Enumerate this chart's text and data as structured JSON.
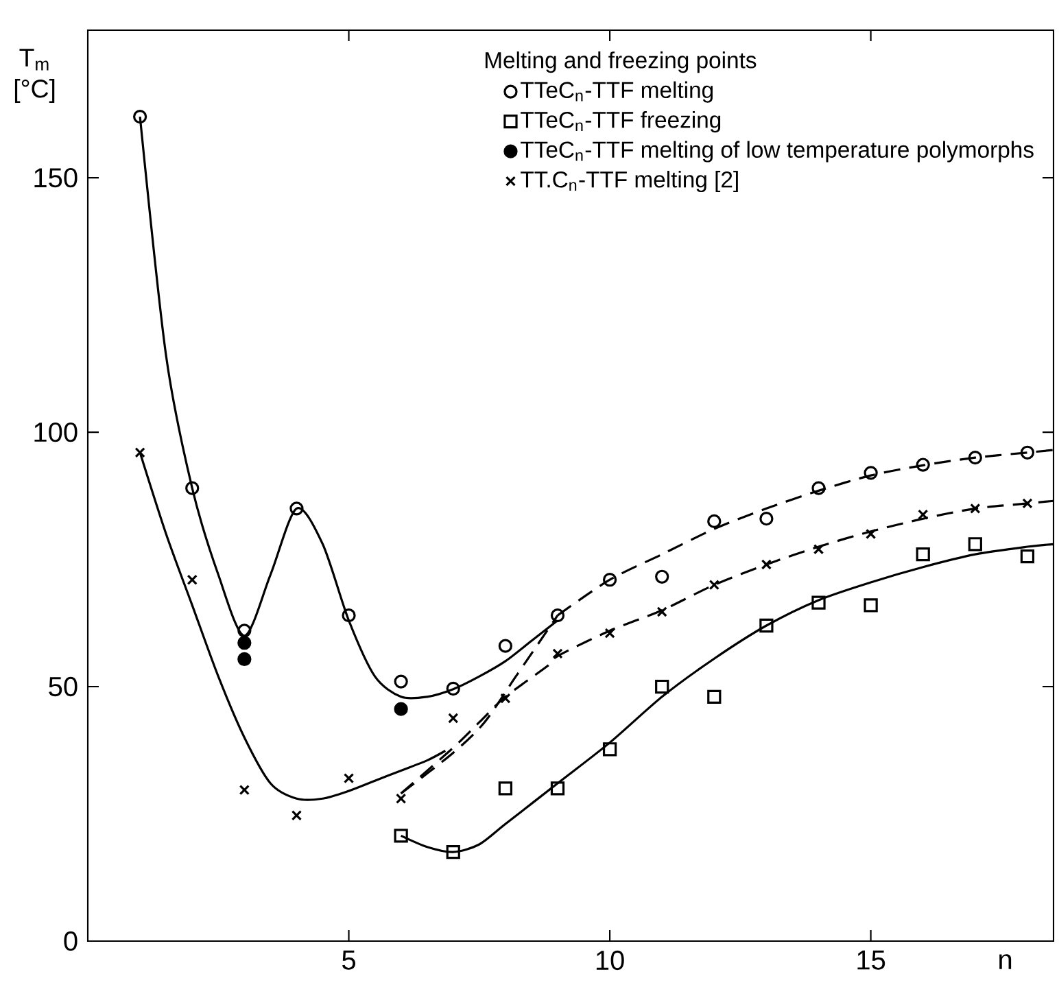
{
  "chart_data": {
    "type": "scatter",
    "ylabel": "T$_{m}$ [°C]",
    "xlabel": "n",
    "legend_title": "Melting and freezing points",
    "legend": "top right",
    "grid": false,
    "xlim": [
      0,
      18.5
    ],
    "ylim": [
      0,
      179
    ],
    "xticks": [
      5,
      10,
      15
    ],
    "yticks": [
      0,
      50,
      100,
      150
    ],
    "series": [
      {
        "name": "TTeC$_{n}$-TTF melting",
        "marker": "circle",
        "color": "#000000",
        "x": [
          1,
          2,
          3,
          4,
          5,
          6,
          7,
          8,
          9,
          10,
          11,
          12,
          13,
          14,
          15,
          16,
          17,
          18
        ],
        "values": [
          162,
          89,
          61,
          85,
          64,
          51,
          49.6,
          58,
          64,
          71,
          71.6,
          82.5,
          83,
          89,
          92,
          93.6,
          95,
          96
        ]
      },
      {
        "name": "TTeC$_{n}$-TTF freezing",
        "marker": "square",
        "color": "#000000",
        "x": [
          6,
          7,
          8,
          9,
          10,
          11,
          12,
          13,
          14,
          15,
          16,
          17,
          18
        ],
        "values": [
          20.7,
          17.5,
          30,
          30,
          37.7,
          50,
          48,
          62,
          66.5,
          66,
          76,
          78,
          75.6
        ]
      },
      {
        "name": "TTeC$_{n}$-TTF melting of low temperature polymorphs",
        "marker": "halfcircle",
        "color": "#000000",
        "x": [
          3,
          3,
          6
        ],
        "values": [
          58.6,
          55.4,
          45.6
        ]
      },
      {
        "name": "TT.C$_{n}$-TTF melting [2]",
        "marker": "cross",
        "color": "#000000",
        "x": [
          1,
          2,
          3,
          4,
          5,
          6,
          7,
          8,
          9,
          10,
          11,
          12,
          13,
          14,
          15,
          16,
          17,
          18
        ],
        "values": [
          96,
          71,
          29.7,
          24.7,
          32,
          28,
          43.8,
          47.7,
          56.5,
          60.5,
          64.7,
          70,
          74,
          77,
          80,
          83.8,
          85,
          86
        ]
      },
      {
        "type": "line",
        "marker": "none",
        "line_style": "solid",
        "color": "#000000",
        "x": [
          1,
          1.5,
          2,
          2.5,
          3,
          3.5,
          4,
          4.5,
          5,
          5.5,
          6,
          6.5,
          7,
          7.5,
          8,
          8.5,
          9
        ],
        "values": [
          162,
          115,
          89,
          72,
          60,
          72,
          85,
          78,
          63,
          52,
          48,
          48,
          49.5,
          52,
          55,
          59,
          63
        ]
      },
      {
        "type": "line",
        "marker": "none",
        "line_style": "dashed",
        "color": "#000000",
        "x": [
          9,
          10,
          11,
          12,
          13,
          14,
          15,
          16,
          17,
          18,
          18.5
        ],
        "values": [
          64,
          71,
          76,
          81,
          85,
          88.5,
          91.5,
          93.5,
          95,
          96,
          96.5
        ]
      },
      {
        "type": "line",
        "marker": "none",
        "line_style": "dashed",
        "color": "#000000",
        "x": [
          6,
          7,
          7.6,
          8.2,
          8.8,
          9
        ],
        "values": [
          29,
          37,
          43,
          52,
          61,
          64
        ]
      },
      {
        "type": "line",
        "marker": "none",
        "line_style": "solid",
        "color": "#000000",
        "x": [
          1,
          1.5,
          2,
          2.5,
          3,
          3.5,
          4,
          4.5,
          5,
          5.5,
          6,
          6.5,
          6.85
        ],
        "values": [
          96,
          80,
          66,
          52,
          40,
          31,
          28,
          28,
          29.5,
          31.5,
          33.5,
          35.5,
          37.4
        ]
      },
      {
        "type": "line",
        "marker": "none",
        "line_style": "dashed",
        "color": "#000000",
        "x": [
          6,
          7,
          7.5,
          8,
          8.8,
          9,
          10,
          11,
          12,
          13,
          14,
          15,
          16,
          17,
          18,
          18.5
        ],
        "values": [
          29,
          38,
          43,
          48,
          54,
          56,
          61,
          65,
          70,
          74,
          77.5,
          80.5,
          83,
          85,
          86,
          86.5
        ]
      },
      {
        "type": "line",
        "marker": "none",
        "line_style": "solid",
        "color": "#000000",
        "x": [
          6,
          6.5,
          7,
          7.5,
          8,
          9,
          10,
          11,
          12,
          13,
          14,
          15,
          16,
          17,
          18,
          18.5
        ],
        "values": [
          20.7,
          18.5,
          17.5,
          19,
          23,
          31,
          39,
          48,
          55.5,
          62,
          67,
          70.5,
          73.5,
          76,
          77.5,
          78
        ]
      }
    ]
  }
}
